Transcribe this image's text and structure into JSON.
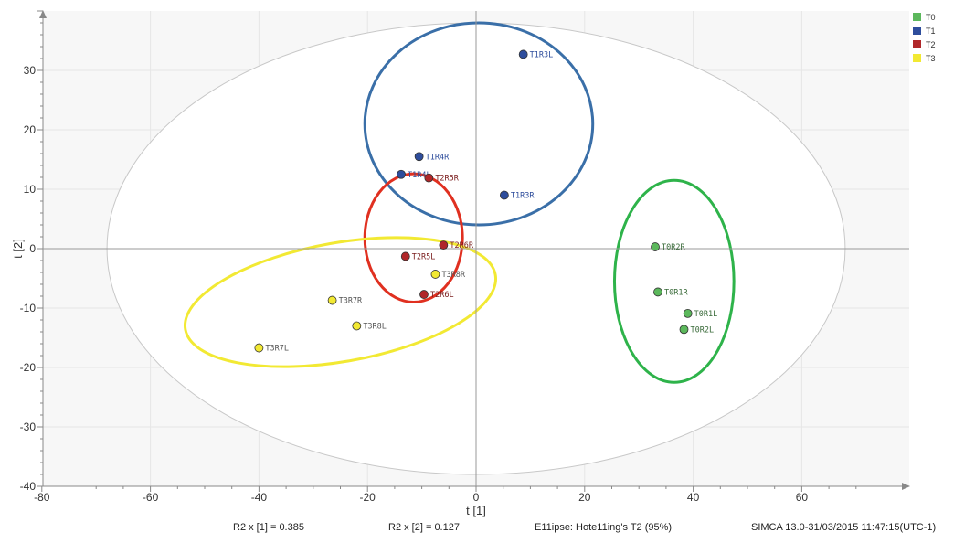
{
  "chart_data": {
    "type": "scatter",
    "title": "",
    "xlabel": "t [1]",
    "ylabel": "t [2]",
    "xlim": [
      -80,
      80
    ],
    "ylim": [
      -40,
      40
    ],
    "xticks": [
      -80,
      -60,
      -40,
      -20,
      0,
      20,
      40,
      60
    ],
    "yticks": [
      30,
      20,
      10,
      0,
      -10,
      -20,
      -30,
      -40
    ],
    "grid": true,
    "legend_position": "top-right",
    "series": [
      {
        "name": "T0",
        "color": "#5cb85c",
        "points": [
          {
            "label": "T0R2R",
            "x": 33,
            "y": 0.3
          },
          {
            "label": "T0R1R",
            "x": 33.5,
            "y": -7.3
          },
          {
            "label": "T0R1L",
            "x": 39,
            "y": -10.9
          },
          {
            "label": "T0R2L",
            "x": 38.3,
            "y": -13.6
          }
        ]
      },
      {
        "name": "T1",
        "color": "#2e4d9c",
        "points": [
          {
            "label": "T1R3L",
            "x": 8.7,
            "y": 32.7
          },
          {
            "label": "T1R4R",
            "x": -10.5,
            "y": 15.5
          },
          {
            "label": "T1R4L",
            "x": -13.8,
            "y": 12.5
          },
          {
            "label": "T1R3R",
            "x": 5.2,
            "y": 9
          }
        ]
      },
      {
        "name": "T2",
        "color": "#b0272a",
        "points": [
          {
            "label": "T2R5R",
            "x": -8.7,
            "y": 11.9
          },
          {
            "label": "T2R6R",
            "x": -6,
            "y": 0.6
          },
          {
            "label": "T2R5L",
            "x": -13,
            "y": -1.3
          },
          {
            "label": "T2R6L",
            "x": -9.6,
            "y": -7.7
          }
        ]
      },
      {
        "name": "T3",
        "color": "#f2e933",
        "points": [
          {
            "label": "T3R8R",
            "x": -7.5,
            "y": -4.3
          },
          {
            "label": "T3R7R",
            "x": -26.5,
            "y": -8.7
          },
          {
            "label": "T3R8L",
            "x": -22,
            "y": -13
          },
          {
            "label": "T3R7L",
            "x": -40,
            "y": -16.7
          }
        ]
      }
    ],
    "ellipses": [
      {
        "name": "Hotelling T2 (95%)",
        "cx": 0,
        "cy": 0,
        "rx": 68,
        "ry": 38,
        "color": "#c8c8c8"
      },
      {
        "name": "T1",
        "cx": 0.5,
        "cy": 21,
        "rx": 21,
        "ry": 17,
        "color": "#3a6fa8"
      },
      {
        "name": "T2",
        "cx": -11.5,
        "cy": 1.8,
        "rx": 9,
        "ry": 10.8,
        "color": "#e03020"
      },
      {
        "name": "T3",
        "cx": -25,
        "cy": -9,
        "rx": 29,
        "ry": 10,
        "rotation_deg": -10,
        "color": "#f2e933"
      },
      {
        "name": "T0",
        "cx": 36.5,
        "cy": -5.5,
        "rx": 11,
        "ry": 17,
        "color": "#2eb34a"
      }
    ]
  },
  "footer": {
    "r2x_1": "R2 x  [1] = 0.385",
    "r2x_2": "R2 x  [2] = 0.127",
    "ellipse_note": "E11ipse: Hote11ing's  T2 (95%)",
    "simca": "SIMCA 13.0-31/03/2015 11:47:15(UTC-1)"
  }
}
